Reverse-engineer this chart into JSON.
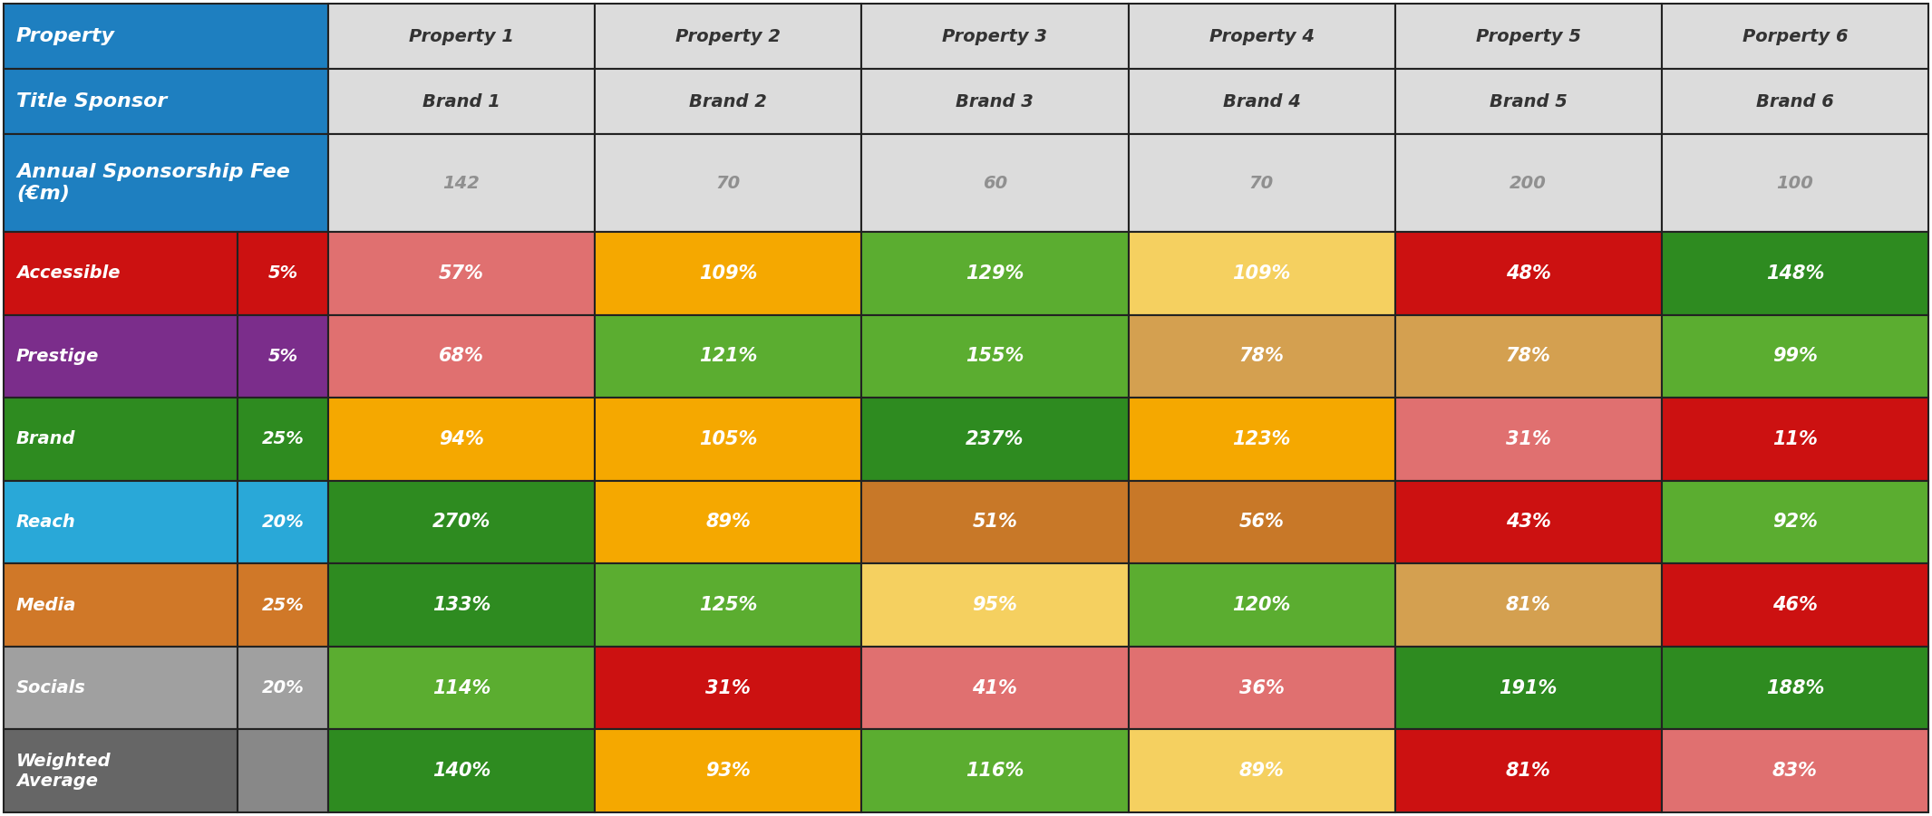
{
  "col_headers": [
    "Property",
    "Property 1",
    "Property 2",
    "Property 3",
    "Property 4",
    "Property 5",
    "Porperty 6"
  ],
  "row2": [
    "Title Sponsor",
    "Brand 1",
    "Brand 2",
    "Brand 3",
    "Brand 4",
    "Brand 5",
    "Brand 6"
  ],
  "row3_label": "Annual Sponsorship Fee\n(€m)",
  "row3_values": [
    "142",
    "70",
    "60",
    "70",
    "200",
    "100"
  ],
  "data_rows": [
    {
      "label": "Accessible",
      "weight": "5%",
      "label_color": "#CC1111",
      "weight_color": "#CC1111",
      "values": [
        "57%",
        "109%",
        "129%",
        "109%",
        "48%",
        "148%"
      ],
      "cell_colors": [
        "#E07070",
        "#F5A800",
        "#5BAD30",
        "#F5D060",
        "#CC1111",
        "#2E8B20"
      ]
    },
    {
      "label": "Prestige",
      "weight": "5%",
      "label_color": "#7B2D8B",
      "weight_color": "#7B2D8B",
      "values": [
        "68%",
        "121%",
        "155%",
        "78%",
        "78%",
        "99%"
      ],
      "cell_colors": [
        "#E07070",
        "#5BAD30",
        "#5BAD30",
        "#D4A050",
        "#D4A050",
        "#5BAD30"
      ]
    },
    {
      "label": "Brand",
      "weight": "25%",
      "label_color": "#2E8B20",
      "weight_color": "#2E8B20",
      "values": [
        "94%",
        "105%",
        "237%",
        "123%",
        "31%",
        "11%"
      ],
      "cell_colors": [
        "#F5A800",
        "#F5A800",
        "#2E8B20",
        "#F5A800",
        "#E07070",
        "#CC1111"
      ]
    },
    {
      "label": "Reach",
      "weight": "20%",
      "label_color": "#29A8D8",
      "weight_color": "#29A8D8",
      "values": [
        "270%",
        "89%",
        "51%",
        "56%",
        "43%",
        "92%"
      ],
      "cell_colors": [
        "#2E8B20",
        "#F5A800",
        "#C87828",
        "#C87828",
        "#CC1111",
        "#5BAD30"
      ]
    },
    {
      "label": "Media",
      "weight": "25%",
      "label_color": "#D07828",
      "weight_color": "#D07828",
      "values": [
        "133%",
        "125%",
        "95%",
        "120%",
        "81%",
        "46%"
      ],
      "cell_colors": [
        "#2E8B20",
        "#5BAD30",
        "#F5D060",
        "#5BAD30",
        "#D4A050",
        "#CC1111"
      ]
    },
    {
      "label": "Socials",
      "weight": "20%",
      "label_color": "#A0A0A0",
      "weight_color": "#A0A0A0",
      "values": [
        "114%",
        "31%",
        "41%",
        "36%",
        "191%",
        "188%"
      ],
      "cell_colors": [
        "#5BAD30",
        "#CC1111",
        "#E07070",
        "#E07070",
        "#2E8B20",
        "#2E8B20"
      ]
    },
    {
      "label": "Weighted\nAverage",
      "weight": "",
      "label_color": "#666666",
      "weight_color": "#888888",
      "values": [
        "140%",
        "93%",
        "116%",
        "89%",
        "81%",
        "83%"
      ],
      "cell_colors": [
        "#2E8B20",
        "#F5A800",
        "#5BAD30",
        "#F5D060",
        "#CC1111",
        "#E07070"
      ]
    }
  ],
  "header_bg": "#1E7FC0",
  "header_text_color": "#FFFFFF",
  "data_header_bg": "#DCDCDC",
  "border_color": "#222222",
  "data_text_color": "#FFFFFF",
  "fee_text_color": "#909090",
  "col_header_text_color": "#333333",
  "weighted_avg_weight_bg": "#888888"
}
